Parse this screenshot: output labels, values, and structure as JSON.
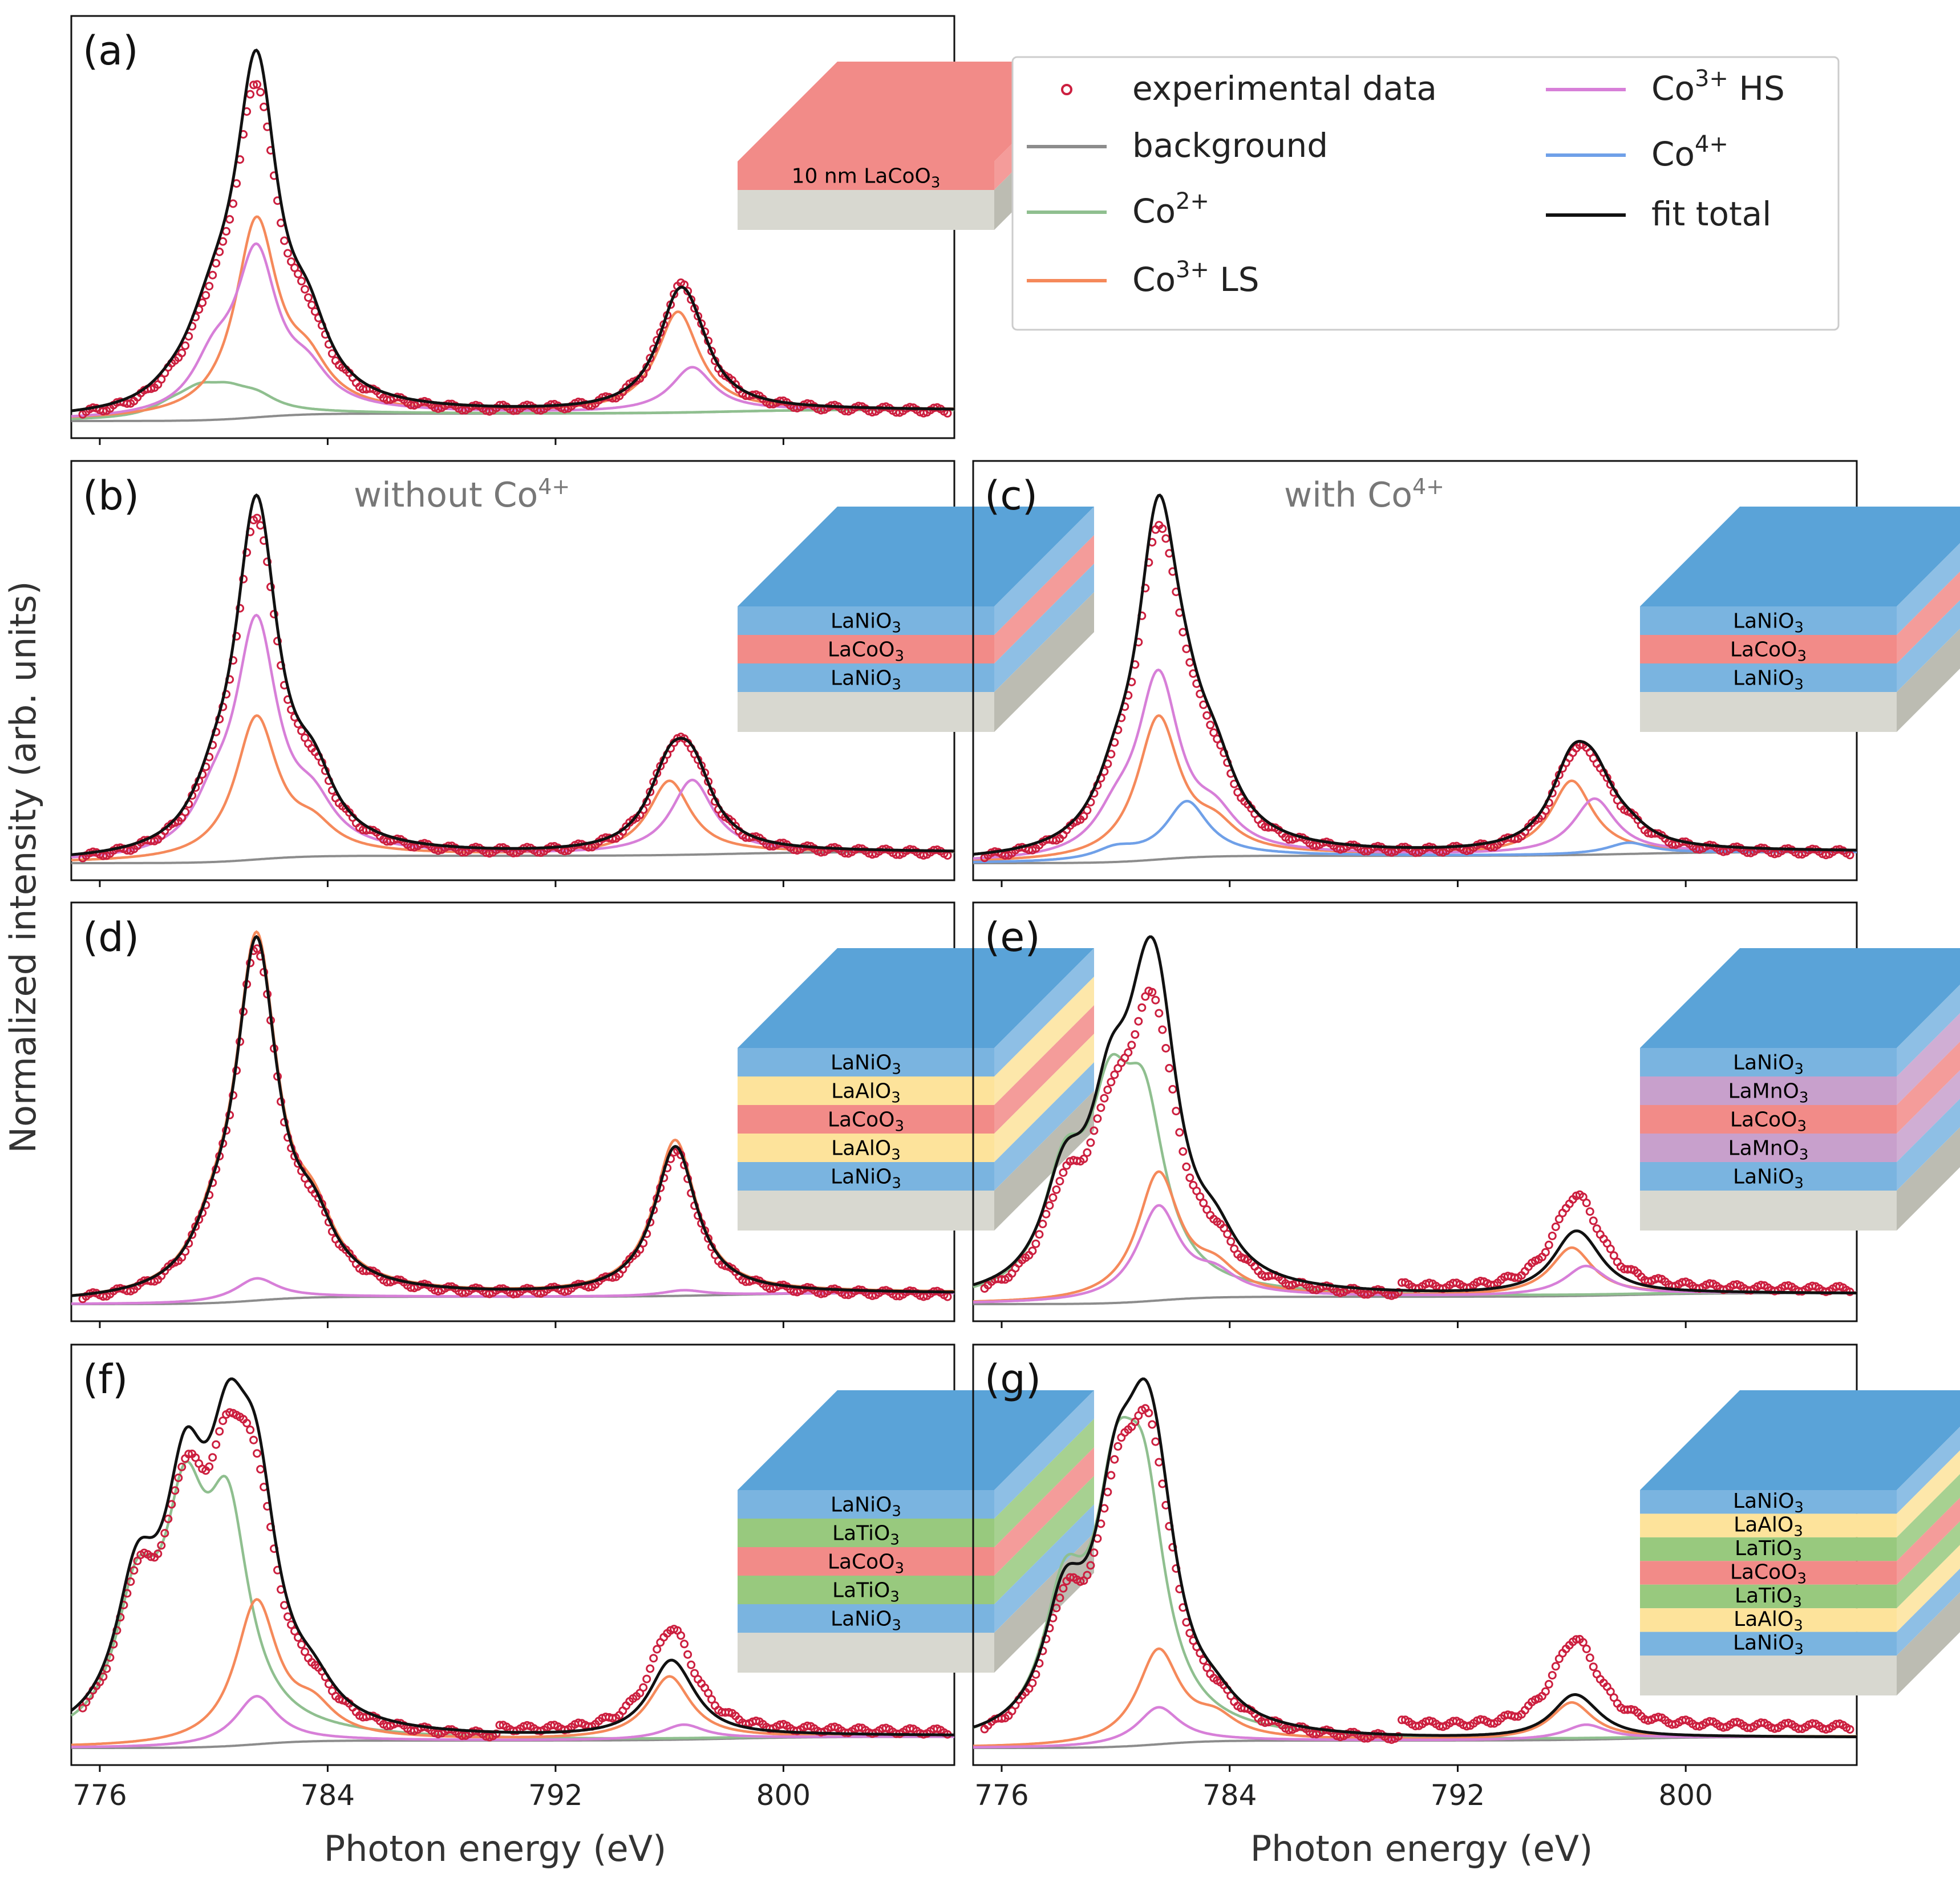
{
  "chart_data": {
    "type": "line",
    "title": "",
    "xlabel": "Photon energy (eV)",
    "ylabel": "Normalized intensity (arb. units)",
    "xlim": [
      775,
      806
    ],
    "x_ticks": [
      "776",
      "784",
      "792",
      "800"
    ],
    "legend": {
      "placement": "top-right",
      "entries": [
        {
          "key": "experimental data",
          "label": "experimental data",
          "color": "#cc1f3f",
          "marker": "circle"
        },
        {
          "key": "background",
          "label": "background",
          "color": "#8c8c8c"
        },
        {
          "key": "co2",
          "label": "Co",
          "sup": "2+",
          "color": "#8fbf8f"
        },
        {
          "key": "co3ls",
          "label": "Co",
          "sup": "3+",
          "suffix": "LS",
          "color": "#f5895a"
        },
        {
          "key": "co3hs",
          "label": "Co",
          "sup": "3+",
          "suffix": "HS",
          "color": "#d77fd8"
        },
        {
          "key": "co4",
          "label": "Co",
          "sup": "4+",
          "color": "#6fa0e8"
        },
        {
          "key": "fit total",
          "label": "fit total",
          "color": "#111111"
        }
      ]
    },
    "panels": [
      {
        "id": "a",
        "label": "(a)",
        "annotation": "",
        "layers": [
          {
            "name": "10 nm LaCoO",
            "sub": "3",
            "color": "#f28b88"
          }
        ],
        "model": {
          "co2": [
            [
              778.5,
              0.025
            ],
            [
              779.5,
              0.06
            ],
            [
              780.5,
              0.05
            ],
            [
              781.5,
              0.04
            ]
          ],
          "co3ls": [
            [
              781.5,
              0.52
            ],
            [
              783.3,
              0.1
            ],
            [
              796.3,
              0.27
            ]
          ],
          "co3hs": [
            [
              780,
              0.12
            ],
            [
              781.5,
              0.42
            ],
            [
              783.3,
              0.08
            ],
            [
              796.8,
              0.12
            ]
          ],
          "co4": []
        },
        "exp_peak": [
          0.92,
          0.37
        ],
        "fit_scale": 1.0
      },
      {
        "id": "b",
        "label": "(b)",
        "annotation": "without Co",
        "annotation_sup": "4+",
        "layers": [
          {
            "name": "LaNiO",
            "sub": "3",
            "color": "#7ab4e0"
          },
          {
            "name": "LaCoO",
            "sub": "3",
            "color": "#f28b88"
          },
          {
            "name": "LaNiO",
            "sub": "3",
            "color": "#7ab4e0"
          }
        ],
        "model": {
          "co2": [],
          "co3ls": [
            [
              781.5,
              0.38
            ],
            [
              783.5,
              0.06
            ],
            [
              796.0,
              0.2
            ]
          ],
          "co3hs": [
            [
              780,
              0.1
            ],
            [
              781.5,
              0.62
            ],
            [
              783.5,
              0.1
            ],
            [
              796.8,
              0.2
            ]
          ],
          "co4": []
        },
        "exp_peak": [
          0.95,
          0.34
        ],
        "fit_scale": 1.0
      },
      {
        "id": "c",
        "label": "(c)",
        "annotation": "with Co",
        "annotation_sup": "4+",
        "layers": [
          {
            "name": "LaNiO",
            "sub": "3",
            "color": "#7ab4e0"
          },
          {
            "name": "LaCoO",
            "sub": "3",
            "color": "#f28b88"
          },
          {
            "name": "LaNiO",
            "sub": "3",
            "color": "#7ab4e0"
          }
        ],
        "model": {
          "co2": [],
          "co3ls": [
            [
              781.5,
              0.38
            ],
            [
              783.5,
              0.06
            ],
            [
              796.0,
              0.2
            ]
          ],
          "co3hs": [
            [
              780,
              0.08
            ],
            [
              781.5,
              0.48
            ],
            [
              783.5,
              0.08
            ],
            [
              796.8,
              0.15
            ]
          ],
          "co4": [
            [
              780,
              0.03
            ],
            [
              782.5,
              0.15
            ],
            [
              798,
              0.03
            ]
          ]
        },
        "exp_peak": [
          0.93,
          0.32
        ],
        "fit_scale": 1.0
      },
      {
        "id": "d",
        "label": "(d)",
        "annotation": "",
        "layers": [
          {
            "name": "LaNiO",
            "sub": "3",
            "color": "#7ab4e0"
          },
          {
            "name": "LaAlO",
            "sub": "3",
            "color": "#fde39b"
          },
          {
            "name": "LaCoO",
            "sub": "3",
            "color": "#f28b88"
          },
          {
            "name": "LaAlO",
            "sub": "3",
            "color": "#fde39b"
          },
          {
            "name": "LaNiO",
            "sub": "3",
            "color": "#7ab4e0"
          }
        ],
        "model": {
          "co2": [],
          "co3ls": [
            [
              780,
              0.1
            ],
            [
              781.5,
              0.95
            ],
            [
              783.5,
              0.15
            ],
            [
              796.2,
              0.42
            ]
          ],
          "co3hs": [
            [
              781.5,
              0.06
            ],
            [
              796.5,
              0.015
            ]
          ],
          "co4": []
        },
        "exp_peak": [
          0.98,
          0.42
        ],
        "fit_scale": 1.0
      },
      {
        "id": "e",
        "label": "(e)",
        "annotation": "",
        "layers": [
          {
            "name": "LaNiO",
            "sub": "3",
            "color": "#7ab4e0"
          },
          {
            "name": "LaMnO",
            "sub": "3",
            "color": "#c8a0cc"
          },
          {
            "name": "LaCoO",
            "sub": "3",
            "color": "#f28b88"
          },
          {
            "name": "LaMnO",
            "sub": "3",
            "color": "#c8a0cc"
          },
          {
            "name": "LaNiO",
            "sub": "3",
            "color": "#7ab4e0"
          }
        ],
        "model": {
          "co2": [
            [
              778.2,
              0.3
            ],
            [
              779.8,
              0.44
            ],
            [
              781,
              0.44
            ]
          ],
          "co3ls": [
            [
              781.5,
              0.34
            ],
            [
              783.5,
              0.06
            ],
            [
              796,
              0.13
            ]
          ],
          "co3hs": [
            [
              781.5,
              0.25
            ],
            [
              783.5,
              0.05
            ],
            [
              796.5,
              0.08
            ]
          ],
          "co4": []
        },
        "exp_peak": [
          0.85,
          0.3
        ],
        "fit_scale": 1.0
      },
      {
        "id": "f",
        "label": "(f)",
        "annotation": "",
        "layers": [
          {
            "name": "LaNiO",
            "sub": "3",
            "color": "#7ab4e0"
          },
          {
            "name": "LaTiO",
            "sub": "3",
            "color": "#98c97e"
          },
          {
            "name": "LaCoO",
            "sub": "3",
            "color": "#f28b88"
          },
          {
            "name": "LaTiO",
            "sub": "3",
            "color": "#98c97e"
          },
          {
            "name": "LaNiO",
            "sub": "3",
            "color": "#7ab4e0"
          }
        ],
        "model": {
          "co2": [
            [
              777.3,
              0.35
            ],
            [
              779,
              0.55
            ],
            [
              780.5,
              0.55
            ]
          ],
          "co3ls": [
            [
              781.5,
              0.38
            ],
            [
              783.5,
              0.07
            ],
            [
              796,
              0.17
            ]
          ],
          "co3hs": [
            [
              781.5,
              0.13
            ],
            [
              796.5,
              0.04
            ]
          ],
          "co4": []
        },
        "exp_peak": [
          0.92,
          0.33
        ],
        "fit_scale": 1.0
      },
      {
        "id": "g",
        "label": "(g)",
        "annotation": "",
        "layers": [
          {
            "name": "LaNiO",
            "sub": "3",
            "color": "#7ab4e0"
          },
          {
            "name": "LaAlO",
            "sub": "3",
            "color": "#fde39b"
          },
          {
            "name": "LaTiO",
            "sub": "3",
            "color": "#98c97e"
          },
          {
            "name": "LaCoO",
            "sub": "3",
            "color": "#f28b88"
          },
          {
            "name": "LaTiO",
            "sub": "3",
            "color": "#98c97e"
          },
          {
            "name": "LaAlO",
            "sub": "3",
            "color": "#fde39b"
          },
          {
            "name": "LaNiO",
            "sub": "3",
            "color": "#7ab4e0"
          }
        ],
        "model": {
          "co2": [
            [
              778.2,
              0.35
            ],
            [
              780,
              0.55
            ],
            [
              781,
              0.55
            ]
          ],
          "co3ls": [
            [
              781.5,
              0.25
            ],
            [
              783.5,
              0.05
            ],
            [
              796,
              0.1
            ]
          ],
          "co3hs": [
            [
              781.5,
              0.1
            ],
            [
              796.5,
              0.04
            ]
          ],
          "co4": []
        },
        "exp_peak": [
          0.92,
          0.3
        ],
        "fit_scale": 1.0
      }
    ]
  }
}
